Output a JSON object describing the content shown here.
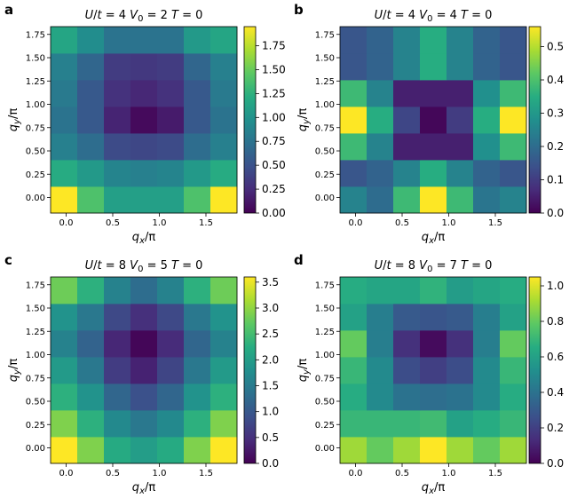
{
  "chart_data": [
    {
      "type": "heatmap",
      "panel_label": "a",
      "title": {
        "a": "U",
        "b": "/",
        "c": "t",
        "d": " = 4  ",
        "e": "V",
        "f": "0",
        "g": " = 2  ",
        "h": "T",
        "i": " = 0"
      },
      "xlabel": {
        "main": "q",
        "sub": "x",
        "tail": "/π"
      },
      "ylabel": {
        "main": "q",
        "sub": "y",
        "tail": "/π"
      },
      "x_ticks": [
        "0.0",
        "0.5",
        "1.0",
        "1.5"
      ],
      "y_ticks": [
        "0.00",
        "0.25",
        "0.50",
        "0.75",
        "1.00",
        "1.25",
        "1.50",
        "1.75"
      ],
      "vmin": 0.0,
      "vmax": 1.95,
      "colorbar_ticks": [
        "0.00",
        "0.25",
        "0.50",
        "0.75",
        "1.00",
        "1.25",
        "1.50",
        "1.75"
      ],
      "colorbar_values": [
        0.0,
        0.25,
        0.5,
        0.75,
        1.0,
        1.25,
        1.5,
        1.75
      ],
      "rows": [
        [
          1.95,
          1.4,
          1.1,
          1.1,
          1.1,
          1.4
        ],
        [
          1.2,
          1.05,
          0.88,
          0.85,
          0.88,
          1.05
        ],
        [
          0.85,
          0.7,
          0.45,
          0.42,
          0.45,
          0.7
        ],
        [
          0.75,
          0.55,
          0.2,
          0.05,
          0.15,
          0.55
        ],
        [
          0.8,
          0.55,
          0.28,
          0.22,
          0.28,
          0.55
        ],
        [
          0.85,
          0.65,
          0.35,
          0.32,
          0.35,
          0.65
        ],
        [
          1.15,
          0.95,
          0.75,
          0.75,
          0.75,
          1.05
        ]
      ]
    },
    {
      "type": "heatmap",
      "panel_label": "b",
      "title": {
        "a": "U",
        "b": "/",
        "c": "t",
        "d": " = 4  ",
        "e": "V",
        "f": "0",
        "g": " = 4  ",
        "h": "T",
        "i": " = 0"
      },
      "xlabel": {
        "main": "q",
        "sub": "x",
        "tail": "/π"
      },
      "ylabel": {
        "main": "q",
        "sub": "y",
        "tail": "/π"
      },
      "x_ticks": [
        "0.0",
        "0.5",
        "1.0",
        "1.5"
      ],
      "y_ticks": [
        "0.00",
        "0.25",
        "0.50",
        "0.75",
        "1.00",
        "1.25",
        "1.50",
        "1.75"
      ],
      "vmin": 0.0,
      "vmax": 0.56,
      "colorbar_ticks": [
        "0.0",
        "0.1",
        "0.2",
        "0.3",
        "0.4",
        "0.5"
      ],
      "colorbar_values": [
        0.0,
        0.1,
        0.2,
        0.3,
        0.4,
        0.5
      ],
      "rows": [
        [
          0.25,
          0.2,
          0.38,
          0.56,
          0.38,
          0.22
        ],
        [
          0.15,
          0.18,
          0.25,
          0.35,
          0.25,
          0.18
        ],
        [
          0.38,
          0.25,
          0.05,
          0.05,
          0.05,
          0.28
        ],
        [
          0.56,
          0.35,
          0.12,
          0.01,
          0.1,
          0.35
        ],
        [
          0.38,
          0.25,
          0.05,
          0.05,
          0.05,
          0.28
        ],
        [
          0.15,
          0.18,
          0.25,
          0.35,
          0.25,
          0.18
        ],
        [
          0.15,
          0.18,
          0.25,
          0.35,
          0.25,
          0.18
        ]
      ]
    },
    {
      "type": "heatmap",
      "panel_label": "c",
      "title": {
        "a": "U",
        "b": "/",
        "c": "t",
        "d": " = 8  ",
        "e": "V",
        "f": "0",
        "g": " = 5  ",
        "h": "T",
        "i": " = 0"
      },
      "xlabel": {
        "main": "q",
        "sub": "x",
        "tail": "/π"
      },
      "ylabel": {
        "main": "q",
        "sub": "y",
        "tail": "/π"
      },
      "x_ticks": [
        "0.0",
        "0.5",
        "1.0",
        "1.5"
      ],
      "y_ticks": [
        "0.00",
        "0.25",
        "0.50",
        "0.75",
        "1.00",
        "1.25",
        "1.50",
        "1.75"
      ],
      "vmin": 0.0,
      "vmax": 3.6,
      "colorbar_ticks": [
        "0.0",
        "0.5",
        "1.0",
        "1.5",
        "2.0",
        "2.5",
        "3.0",
        "3.5"
      ],
      "colorbar_values": [
        0.0,
        0.5,
        1.0,
        1.5,
        2.0,
        2.5,
        3.0,
        3.5
      ],
      "rows": [
        [
          3.6,
          2.9,
          2.2,
          2.0,
          2.2,
          2.9
        ],
        [
          2.9,
          2.3,
          1.7,
          1.45,
          1.7,
          2.3
        ],
        [
          2.3,
          1.85,
          1.2,
          0.9,
          1.2,
          1.85
        ],
        [
          1.95,
          1.45,
          0.65,
          0.35,
          0.75,
          1.45
        ],
        [
          1.6,
          1.15,
          0.4,
          0.05,
          0.45,
          1.2
        ],
        [
          1.85,
          1.45,
          0.8,
          0.5,
          0.8,
          1.45
        ],
        [
          2.8,
          2.3,
          1.6,
          1.3,
          1.6,
          2.3
        ]
      ]
    },
    {
      "type": "heatmap",
      "panel_label": "d",
      "title": {
        "a": "U",
        "b": "/",
        "c": "t",
        "d": " = 8  ",
        "e": "V",
        "f": "0",
        "g": " = 7  ",
        "h": "T",
        "i": " = 0"
      },
      "xlabel": {
        "main": "q",
        "sub": "x",
        "tail": "/π"
      },
      "ylabel": {
        "main": "q",
        "sub": "y",
        "tail": "/π"
      },
      "x_ticks": [
        "0.0",
        "0.5",
        "1.0",
        "1.5"
      ],
      "y_ticks": [
        "0.00",
        "0.25",
        "0.50",
        "0.75",
        "1.00",
        "1.25",
        "1.50",
        "1.75"
      ],
      "vmin": 0.0,
      "vmax": 1.05,
      "colorbar_ticks": [
        "0.0",
        "0.2",
        "0.4",
        "0.6",
        "0.8",
        "1.0"
      ],
      "colorbar_values": [
        0.0,
        0.2,
        0.4,
        0.6,
        0.8,
        1.0
      ],
      "rows": [
        [
          0.9,
          0.8,
          0.9,
          1.05,
          0.9,
          0.8
        ],
        [
          0.7,
          0.7,
          0.7,
          0.72,
          0.6,
          0.65
        ],
        [
          0.65,
          0.5,
          0.4,
          0.38,
          0.4,
          0.5
        ],
        [
          0.7,
          0.5,
          0.25,
          0.2,
          0.25,
          0.5
        ],
        [
          0.8,
          0.45,
          0.15,
          0.03,
          0.15,
          0.45
        ],
        [
          0.6,
          0.45,
          0.3,
          0.28,
          0.3,
          0.45
        ],
        [
          0.65,
          0.62,
          0.62,
          0.68,
          0.58,
          0.62
        ]
      ]
    }
  ]
}
